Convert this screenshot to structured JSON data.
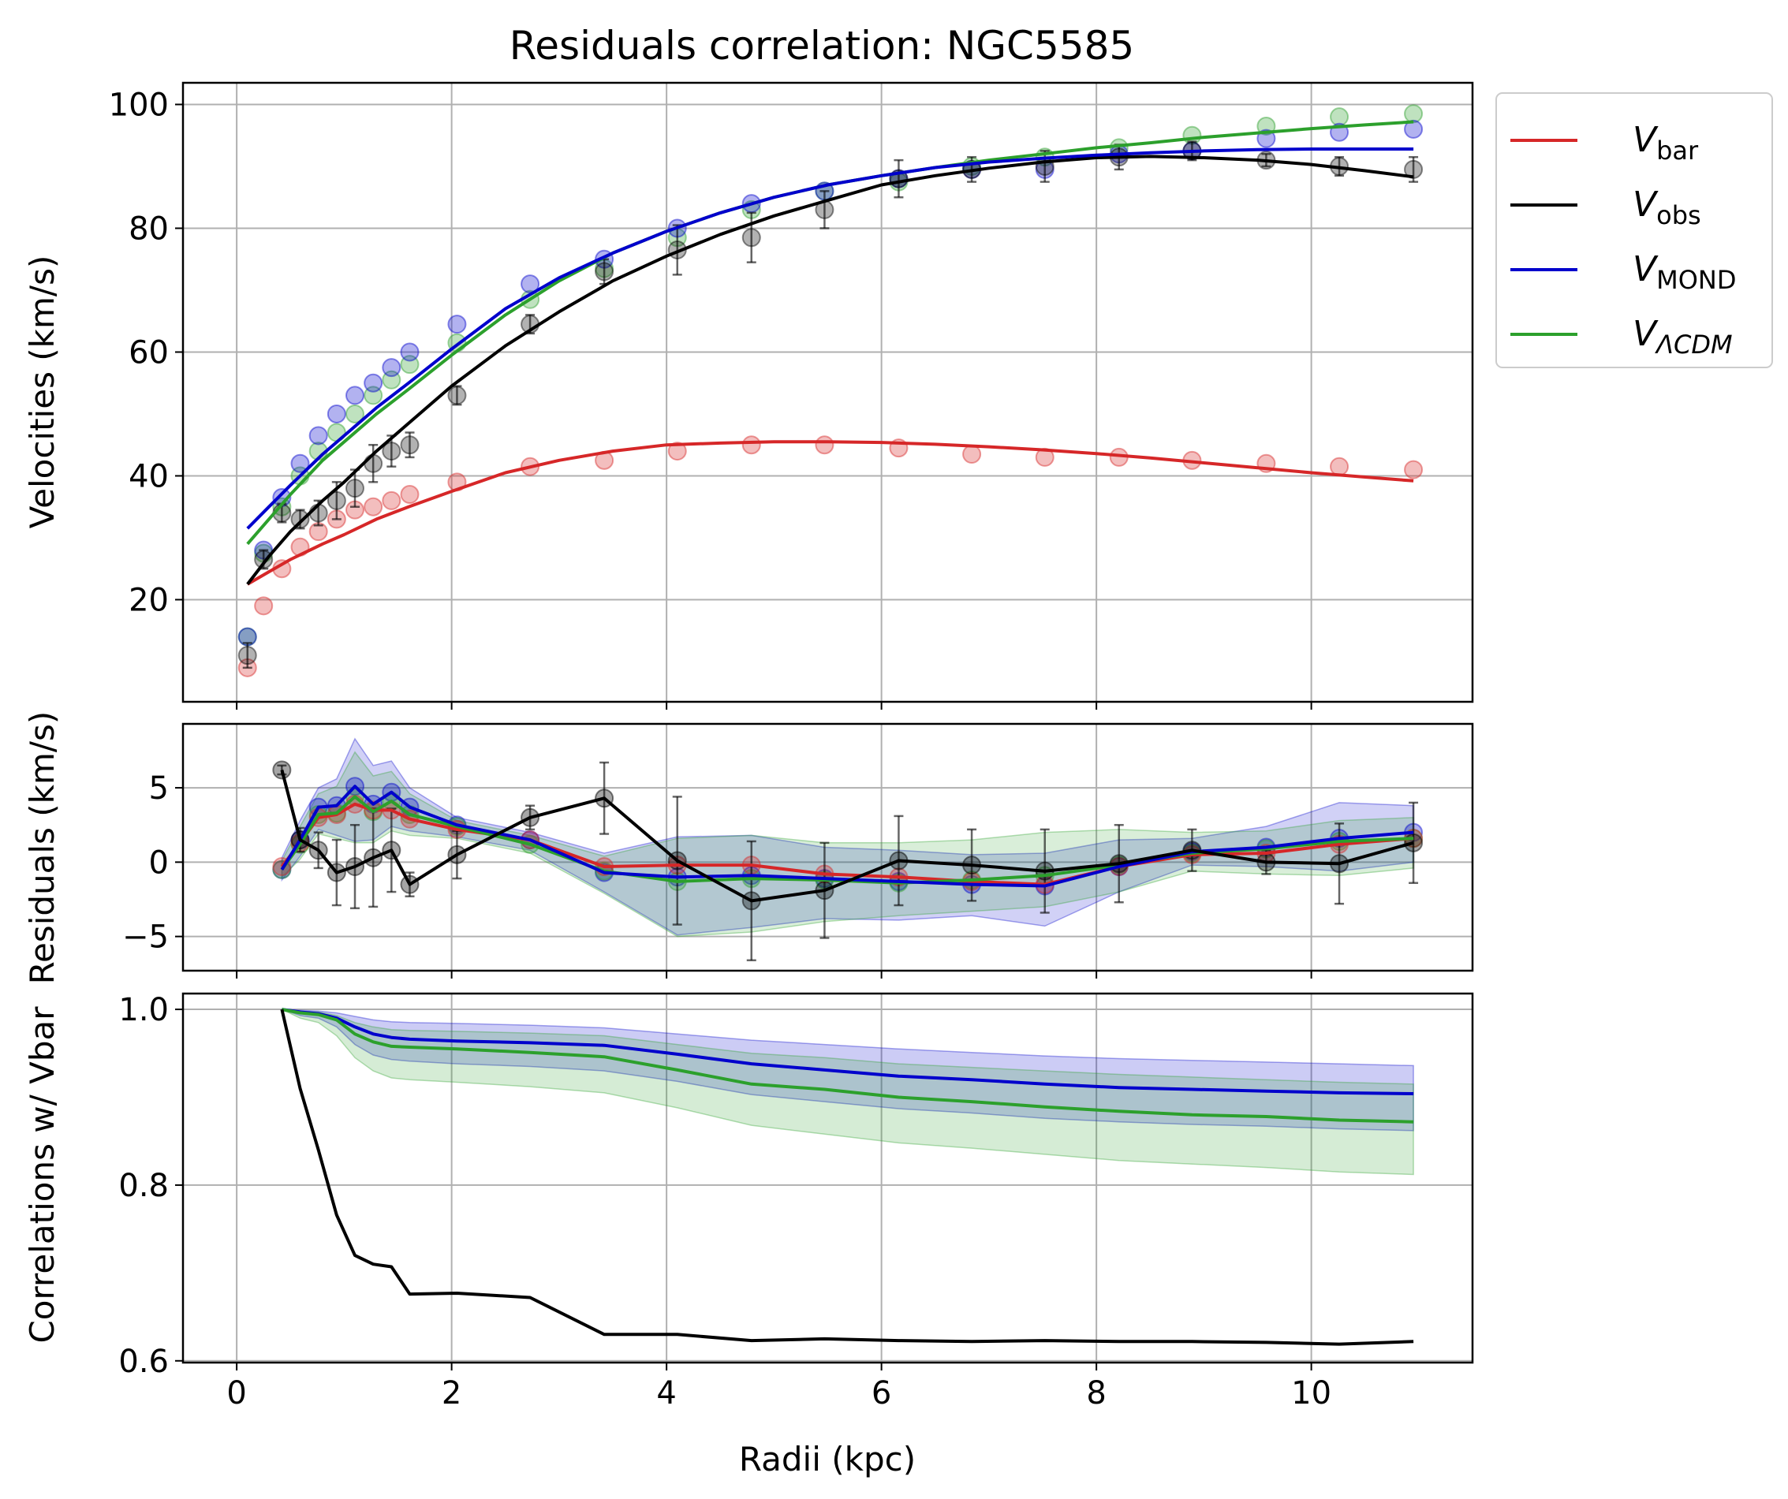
{
  "chart_data": [
    {
      "panel": "velocities",
      "type": "line+scatter",
      "title": "Residuals correlation: NGC5585",
      "ylabel": "Velocities (km/s)",
      "xlim": [
        -0.5,
        11.5
      ],
      "ylim": [
        3.5,
        103.5
      ],
      "xticks": [
        0,
        2,
        4,
        6,
        8,
        10
      ],
      "yticks": [
        20,
        40,
        60,
        80,
        100
      ],
      "ytick_labels": [
        "20",
        "40",
        "60",
        "80",
        "100"
      ],
      "grid": true,
      "legend": {
        "placement": "outside-right-top",
        "entries": [
          {
            "symbol": "V",
            "sub": "bar",
            "italic_sub": false,
            "color": "#d62728"
          },
          {
            "symbol": "V",
            "sub": "obs",
            "italic_sub": false,
            "color": "#000000"
          },
          {
            "symbol": "V",
            "sub": "MOND",
            "italic_sub": false,
            "color": "#0000cc"
          },
          {
            "symbol": "V",
            "sub": "ΛCDM",
            "italic_sub": true,
            "color": "#2ca02c"
          }
        ]
      },
      "radii": [
        0.1,
        0.25,
        0.42,
        0.59,
        0.76,
        0.93,
        1.1,
        1.27,
        1.44,
        1.61,
        2.05,
        2.73,
        3.42,
        4.1,
        4.79,
        5.47,
        6.16,
        6.84,
        7.52,
        8.21,
        8.89,
        9.58,
        10.26,
        10.95
      ],
      "points": {
        "Vbar": [
          9,
          19,
          25,
          28.5,
          31,
          33,
          34.5,
          35,
          36,
          37,
          39,
          41.5,
          42.5,
          44,
          45,
          45,
          44.5,
          43.5,
          43,
          43,
          42.5,
          42,
          41.5,
          41
        ],
        "Vobs": [
          11,
          26.5,
          34,
          33,
          34,
          36,
          38,
          42,
          44,
          45,
          53,
          64.5,
          73,
          76.5,
          78.5,
          83,
          88,
          89.5,
          90,
          91.5,
          92.5,
          91,
          90,
          89.5
        ],
        "Vobs_err": [
          2,
          1.5,
          1.5,
          1.5,
          2,
          3,
          3,
          3,
          2.5,
          2,
          1.5,
          1.5,
          2,
          4,
          4,
          3,
          3,
          2,
          2.5,
          2,
          1.5,
          1,
          1.5,
          2
        ],
        "VMOND": [
          14,
          28,
          36.5,
          42,
          46.5,
          50,
          53,
          55,
          57.5,
          60,
          64.5,
          71,
          75,
          80,
          84,
          86,
          88,
          89.5,
          89.5,
          92,
          92.5,
          94.5,
          95.5,
          96
        ],
        "VLCDM": [
          14,
          27.5,
          35,
          40,
          44,
          47,
          50,
          53,
          55.5,
          58,
          61.5,
          68.5,
          73.5,
          78.5,
          83,
          86,
          87.5,
          90,
          91.5,
          93,
          95,
          96.5,
          98,
          98.5
        ]
      },
      "curves": {
        "x": [
          0.1,
          0.3,
          0.5,
          0.8,
          1.0,
          1.3,
          1.6,
          2.0,
          2.5,
          3.0,
          3.5,
          4.0,
          4.5,
          5.0,
          5.5,
          6.0,
          6.5,
          7.0,
          7.5,
          8.0,
          8.5,
          9.0,
          9.5,
          10.0,
          10.5,
          10.95
        ],
        "Vbar": [
          22.5,
          24.5,
          26.5,
          29,
          30.5,
          33,
          35,
          37.5,
          40.5,
          42.5,
          44,
          45,
          45.3,
          45.5,
          45.5,
          45.4,
          45.1,
          44.7,
          44.2,
          43.6,
          42.9,
          42.1,
          41.3,
          40.5,
          39.8,
          39.2
        ],
        "Vobs": [
          22.5,
          27,
          31,
          36,
          39,
          44,
          48.5,
          54.5,
          61,
          66.5,
          71.5,
          75.5,
          79,
          82,
          84.5,
          87,
          88.5,
          89.7,
          90.7,
          91.4,
          91.6,
          91.4,
          91,
          90.3,
          89.3,
          88.3
        ],
        "VMOND": [
          31.5,
          35,
          38.5,
          43.5,
          46.5,
          51,
          55,
          60.5,
          67,
          72,
          76,
          79.5,
          82.5,
          85,
          87,
          88.5,
          89.8,
          90.7,
          91.3,
          91.8,
          92.2,
          92.5,
          92.7,
          92.8,
          92.8,
          92.8
        ],
        "VLCDM": [
          29,
          33,
          37,
          42.5,
          45.5,
          50,
          54,
          59.5,
          66,
          71.5,
          76,
          79.5,
          82.5,
          85,
          87,
          88.5,
          89.8,
          91,
          92,
          93,
          93.8,
          94.7,
          95.4,
          96.1,
          96.7,
          97.2
        ]
      }
    },
    {
      "panel": "residuals",
      "type": "line+scatter",
      "ylabel": "Residuals (km/s)",
      "xlim": [
        -0.5,
        11.5
      ],
      "ylim": [
        -7.3,
        9.3
      ],
      "yticks": [
        -5,
        0,
        5
      ],
      "ytick_labels": [
        "−5",
        "0",
        "5"
      ],
      "grid": true,
      "x": [
        0.42,
        0.59,
        0.76,
        0.93,
        1.1,
        1.27,
        1.44,
        1.61,
        2.05,
        2.73,
        3.42,
        4.1,
        4.79,
        5.47,
        6.16,
        6.84,
        7.52,
        8.21,
        8.89,
        9.58,
        10.26,
        10.95
      ],
      "Vobs": [
        6.2,
        1.5,
        0.8,
        -0.7,
        -0.3,
        0.3,
        0.8,
        -1.5,
        0.5,
        3.0,
        4.3,
        0.1,
        -2.6,
        -1.9,
        0.1,
        -0.2,
        -0.6,
        -0.1,
        0.8,
        0,
        -0.1,
        1.3
      ],
      "Vobs_err": [
        0.3,
        0.8,
        1.2,
        2.2,
        2.8,
        3.3,
        2.8,
        0.8,
        1.6,
        0.8,
        2.4,
        4.3,
        4.0,
        3.2,
        3.0,
        2.4,
        2.8,
        2.6,
        1.4,
        0.8,
        2.7,
        2.7
      ],
      "Vbar": [
        -0.3,
        1.3,
        3.0,
        3.2,
        3.9,
        3.5,
        3.5,
        2.9,
        2.2,
        1.5,
        -0.3,
        -0.2,
        -0.2,
        -0.8,
        -1.0,
        -1.3,
        -1.5,
        -0.3,
        0.5,
        0.6,
        1.2,
        1.6
      ],
      "VMOND": [
        -0.5,
        1.5,
        3.7,
        3.8,
        5.1,
        3.9,
        4.7,
        3.7,
        2.5,
        1.5,
        -0.7,
        -1.0,
        -0.9,
        -1.1,
        -1.3,
        -1.5,
        -1.6,
        -0.3,
        0.7,
        1.0,
        1.6,
        2.0
      ],
      "VLCDM": [
        -0.5,
        1.2,
        3.2,
        3.3,
        4.4,
        3.4,
        4.1,
        3.2,
        2.4,
        1.2,
        -0.6,
        -1.3,
        -1.1,
        -1.2,
        -1.4,
        -1.2,
        -0.9,
        -0.2,
        0.6,
        0.9,
        1.4,
        1.6
      ],
      "band_MOND": {
        "upper": [
          0.3,
          2.8,
          5.0,
          5.6,
          8.3,
          6.5,
          6.8,
          5.0,
          3.0,
          2.0,
          0.6,
          1.7,
          1.8,
          1.0,
          0.8,
          0.5,
          0.6,
          1.5,
          1.6,
          2.4,
          4.0,
          3.8
        ],
        "lower": [
          -1.2,
          0.4,
          2.2,
          1.8,
          1.4,
          1.5,
          2.4,
          2.1,
          1.7,
          0.8,
          -2.0,
          -4.9,
          -4.4,
          -3.8,
          -3.9,
          -3.6,
          -4.3,
          -2.0,
          -0.2,
          -0.3,
          -0.6,
          0.0
        ]
      },
      "band_LCDM": {
        "upper": [
          0.1,
          2.4,
          4.6,
          5.1,
          7.4,
          5.8,
          6.1,
          4.6,
          2.8,
          1.8,
          0.4,
          1.6,
          1.8,
          1.3,
          1.3,
          1.5,
          2.0,
          2.2,
          2.0,
          2.1,
          2.8,
          3.0
        ],
        "lower": [
          -1.0,
          0.2,
          1.9,
          1.6,
          1.3,
          1.3,
          2.1,
          1.8,
          1.6,
          0.6,
          -2.1,
          -5.0,
          -4.7,
          -4.0,
          -3.6,
          -3.3,
          -3.0,
          -2.0,
          -0.6,
          -0.8,
          -0.9,
          -0.4
        ]
      }
    },
    {
      "panel": "correlations",
      "type": "line",
      "ylabel": "Correlations w/ Vbar",
      "xlabel": "Radii (kpc)",
      "xlim": [
        -0.5,
        11.5
      ],
      "ylim": [
        0.598,
        1.018
      ],
      "yticks": [
        0.6,
        0.8,
        1.0
      ],
      "ytick_labels": [
        "0.6",
        "0.8",
        "1.0"
      ],
      "xtick_labels": [
        "0",
        "2",
        "4",
        "6",
        "8",
        "10"
      ],
      "grid": true,
      "x": [
        0.42,
        0.59,
        0.76,
        0.93,
        1.1,
        1.27,
        1.44,
        1.61,
        2.05,
        2.73,
        3.42,
        4.1,
        4.79,
        5.47,
        6.16,
        6.84,
        7.52,
        8.21,
        8.89,
        9.58,
        10.26,
        10.95
      ],
      "Vobs": [
        1.0,
        0.91,
        0.84,
        0.766,
        0.72,
        0.71,
        0.707,
        0.676,
        0.677,
        0.672,
        0.63,
        0.63,
        0.623,
        0.625,
        0.623,
        0.622,
        0.623,
        0.622,
        0.622,
        0.621,
        0.619,
        0.622
      ],
      "VMOND": [
        1.0,
        0.997,
        0.995,
        0.99,
        0.98,
        0.972,
        0.968,
        0.966,
        0.964,
        0.962,
        0.959,
        0.949,
        0.938,
        0.931,
        0.924,
        0.92,
        0.915,
        0.911,
        0.909,
        0.907,
        0.905,
        0.904
      ],
      "VLCDM": [
        1.0,
        0.996,
        0.994,
        0.988,
        0.972,
        0.963,
        0.958,
        0.957,
        0.955,
        0.951,
        0.946,
        0.931,
        0.915,
        0.909,
        0.9,
        0.895,
        0.889,
        0.884,
        0.88,
        0.878,
        0.874,
        0.872
      ],
      "band_MOND": {
        "upper": [
          1.0,
          0.999,
          0.998,
          0.996,
          0.992,
          0.988,
          0.986,
          0.985,
          0.984,
          0.982,
          0.979,
          0.972,
          0.965,
          0.96,
          0.955,
          0.951,
          0.947,
          0.944,
          0.942,
          0.94,
          0.938,
          0.936
        ],
        "lower": [
          1.0,
          0.993,
          0.99,
          0.98,
          0.96,
          0.948,
          0.943,
          0.941,
          0.938,
          0.935,
          0.93,
          0.918,
          0.903,
          0.895,
          0.887,
          0.882,
          0.876,
          0.872,
          0.869,
          0.867,
          0.864,
          0.862
        ]
      },
      "band_LCDM": {
        "upper": [
          1.0,
          0.998,
          0.997,
          0.993,
          0.985,
          0.98,
          0.977,
          0.976,
          0.975,
          0.973,
          0.97,
          0.96,
          0.95,
          0.945,
          0.938,
          0.934,
          0.93,
          0.926,
          0.923,
          0.92,
          0.917,
          0.915
        ],
        "lower": [
          1.0,
          0.99,
          0.985,
          0.97,
          0.945,
          0.93,
          0.922,
          0.92,
          0.917,
          0.912,
          0.905,
          0.888,
          0.868,
          0.858,
          0.848,
          0.842,
          0.835,
          0.828,
          0.824,
          0.82,
          0.815,
          0.812
        ]
      }
    }
  ],
  "colors": {
    "bar": "#d62728",
    "obs": "#000000",
    "mond": "#0000cc",
    "lcdm": "#2ca02c"
  }
}
